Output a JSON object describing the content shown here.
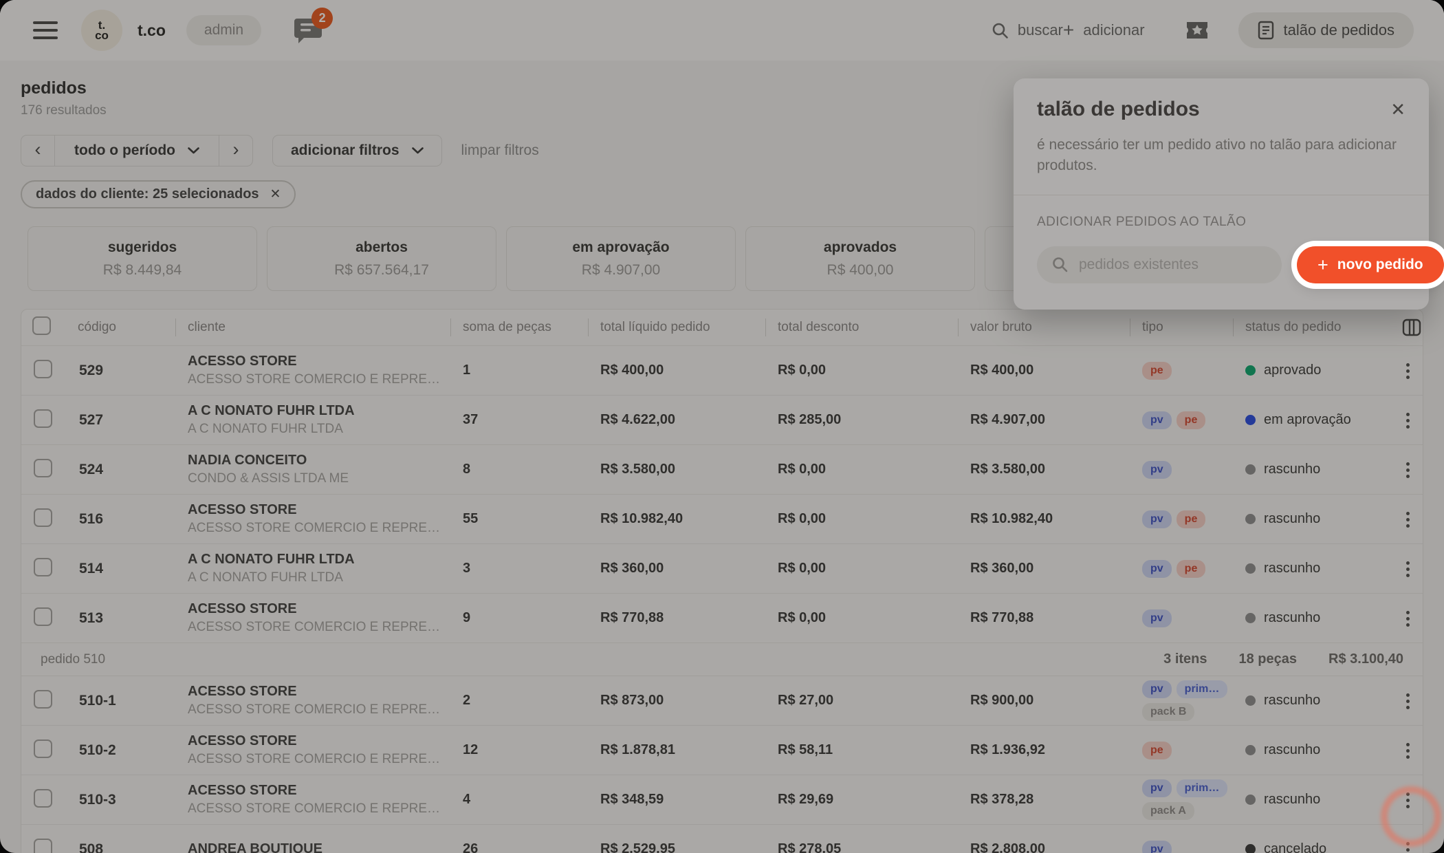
{
  "topbar": {
    "logo_top": "t.",
    "logo_bottom": "co",
    "brand": "t.co",
    "role_badge": "admin",
    "chat_badge": "2",
    "search_label": "buscar",
    "add_label": "adicionar",
    "order_pad_button": "talão de pedidos"
  },
  "icons": {
    "plus": "+",
    "close": "✕",
    "chevron_left": "‹",
    "chevron_right": "›"
  },
  "page": {
    "title": "pedidos",
    "results": "176 resultados"
  },
  "filters": {
    "period_label": "todo o período",
    "add_label": "adicionar filtros",
    "clear_label": "limpar filtros",
    "client_chip": "dados do cliente: 25 selecionados"
  },
  "cards": [
    {
      "label": "sugeridos",
      "value": "R$ 8.449,84"
    },
    {
      "label": "abertos",
      "value": "R$ 657.564,17"
    },
    {
      "label": "em aprovação",
      "value": "R$ 4.907,00"
    },
    {
      "label": "aprovados",
      "value": "R$ 400,00"
    },
    {
      "label": "",
      "value": ""
    }
  ],
  "modal": {
    "title": "talão de pedidos",
    "description": "é necessário ter um pedido ativo no talão para adicionar produtos.",
    "section_label": "ADICIONAR PEDIDOS AO TALÃO",
    "search_placeholder": "pedidos existentes",
    "new_order_label": "novo pedido"
  },
  "table": {
    "headers": {
      "codigo": "código",
      "cliente": "cliente",
      "soma": "soma de peças",
      "liquido": "total líquido pedido",
      "desconto": "total desconto",
      "bruto": "valor bruto",
      "tipo": "tipo",
      "status": "status do pedido"
    },
    "rows": [
      {
        "kind": "order",
        "code": "529",
        "client": "ACESSO STORE",
        "client_sub": "ACESSO STORE COMERCIO E REPRE…",
        "pieces": "1",
        "net": "R$ 400,00",
        "discount": "R$ 0,00",
        "gross": "R$ 400,00",
        "types": [
          {
            "label": "pe",
            "kind": "pe"
          }
        ],
        "pack": null,
        "status": "aprovado",
        "status_key": "aprovado"
      },
      {
        "kind": "order",
        "code": "527",
        "client": "A C NONATO FUHR LTDA",
        "client_sub": "A C NONATO FUHR LTDA",
        "pieces": "37",
        "net": "R$ 4.622,00",
        "discount": "R$ 285,00",
        "gross": "R$ 4.907,00",
        "types": [
          {
            "label": "pv",
            "kind": "pv"
          },
          {
            "label": "pe",
            "kind": "pe"
          }
        ],
        "pack": null,
        "status": "em aprovação",
        "status_key": "em_aprovacao"
      },
      {
        "kind": "order",
        "code": "524",
        "client": "NADIA CONCEITO",
        "client_sub": "CONDO & ASSIS LTDA ME",
        "pieces": "8",
        "net": "R$ 3.580,00",
        "discount": "R$ 0,00",
        "gross": "R$ 3.580,00",
        "types": [
          {
            "label": "pv",
            "kind": "pv"
          }
        ],
        "pack": null,
        "status": "rascunho",
        "status_key": "rascunho"
      },
      {
        "kind": "order",
        "code": "516",
        "client": "ACESSO STORE",
        "client_sub": "ACESSO STORE COMERCIO E REPRE…",
        "pieces": "55",
        "net": "R$ 10.982,40",
        "discount": "R$ 0,00",
        "gross": "R$ 10.982,40",
        "types": [
          {
            "label": "pv",
            "kind": "pv"
          },
          {
            "label": "pe",
            "kind": "pe"
          }
        ],
        "pack": null,
        "status": "rascunho",
        "status_key": "rascunho"
      },
      {
        "kind": "order",
        "code": "514",
        "client": "A C NONATO FUHR LTDA",
        "client_sub": "A C NONATO FUHR LTDA",
        "pieces": "3",
        "net": "R$ 360,00",
        "discount": "R$ 0,00",
        "gross": "R$ 360,00",
        "types": [
          {
            "label": "pv",
            "kind": "pv"
          },
          {
            "label": "pe",
            "kind": "pe"
          }
        ],
        "pack": null,
        "status": "rascunho",
        "status_key": "rascunho"
      },
      {
        "kind": "order",
        "code": "513",
        "client": "ACESSO STORE",
        "client_sub": "ACESSO STORE COMERCIO E REPRE…",
        "pieces": "9",
        "net": "R$ 770,88",
        "discount": "R$ 0,00",
        "gross": "R$ 770,88",
        "types": [
          {
            "label": "pv",
            "kind": "pv"
          }
        ],
        "pack": null,
        "status": "rascunho",
        "status_key": "rascunho"
      },
      {
        "kind": "group",
        "label": "pedido 510",
        "items": "3 itens",
        "pieces": "18 peças",
        "total": "R$ 3.100,40"
      },
      {
        "kind": "order",
        "code": "510-1",
        "client": "ACESSO STORE",
        "client_sub": "ACESSO STORE COMERCIO E REPRE…",
        "pieces": "2",
        "net": "R$ 873,00",
        "discount": "R$ 27,00",
        "gross": "R$ 900,00",
        "types": [
          {
            "label": "pv",
            "kind": "pv"
          },
          {
            "label": "prim…",
            "kind": "prim"
          }
        ],
        "pack": "pack B",
        "status": "rascunho",
        "status_key": "rascunho"
      },
      {
        "kind": "order",
        "code": "510-2",
        "client": "ACESSO STORE",
        "client_sub": "ACESSO STORE COMERCIO E REPRE…",
        "pieces": "12",
        "net": "R$ 1.878,81",
        "discount": "R$ 58,11",
        "gross": "R$ 1.936,92",
        "types": [
          {
            "label": "pe",
            "kind": "pe"
          }
        ],
        "pack": null,
        "status": "rascunho",
        "status_key": "rascunho"
      },
      {
        "kind": "order",
        "code": "510-3",
        "client": "ACESSO STORE",
        "client_sub": "ACESSO STORE COMERCIO E REPRE…",
        "pieces": "4",
        "net": "R$ 348,59",
        "discount": "R$ 29,69",
        "gross": "R$ 378,28",
        "types": [
          {
            "label": "pv",
            "kind": "pv"
          },
          {
            "label": "prim…",
            "kind": "prim"
          }
        ],
        "pack": "pack A",
        "status": "rascunho",
        "status_key": "rascunho"
      },
      {
        "kind": "order",
        "code": "508",
        "client": "ANDREA BOUTIQUE",
        "client_sub": "",
        "pieces": "26",
        "net": "R$ 2.529,95",
        "discount": "R$ 278,05",
        "gross": "R$ 2.808,00",
        "types": [
          {
            "label": "pv",
            "kind": "pv"
          }
        ],
        "pack": null,
        "status": "cancelado",
        "status_key": "cancelado"
      }
    ]
  },
  "colors": {
    "accent_orange": "#F1502A",
    "notification_badge": "#E85B22",
    "badge_pv_bg": "#CDD5F2",
    "badge_pv_text": "#3F53C4",
    "badge_pe_bg": "#F5CFC5",
    "badge_pe_text": "#D44A33",
    "badge_prim_bg": "#DCE2F7",
    "badge_prim_text": "#4B61CF",
    "badge_pack_bg": "#E9E7E3",
    "badge_pack_text": "#8D8B88",
    "status": {
      "aprovado": "#0FA76F",
      "em_aprovacao": "#2B4EE0",
      "rascunho": "#8F8F8F",
      "cancelado": "#3A3A3A"
    }
  }
}
